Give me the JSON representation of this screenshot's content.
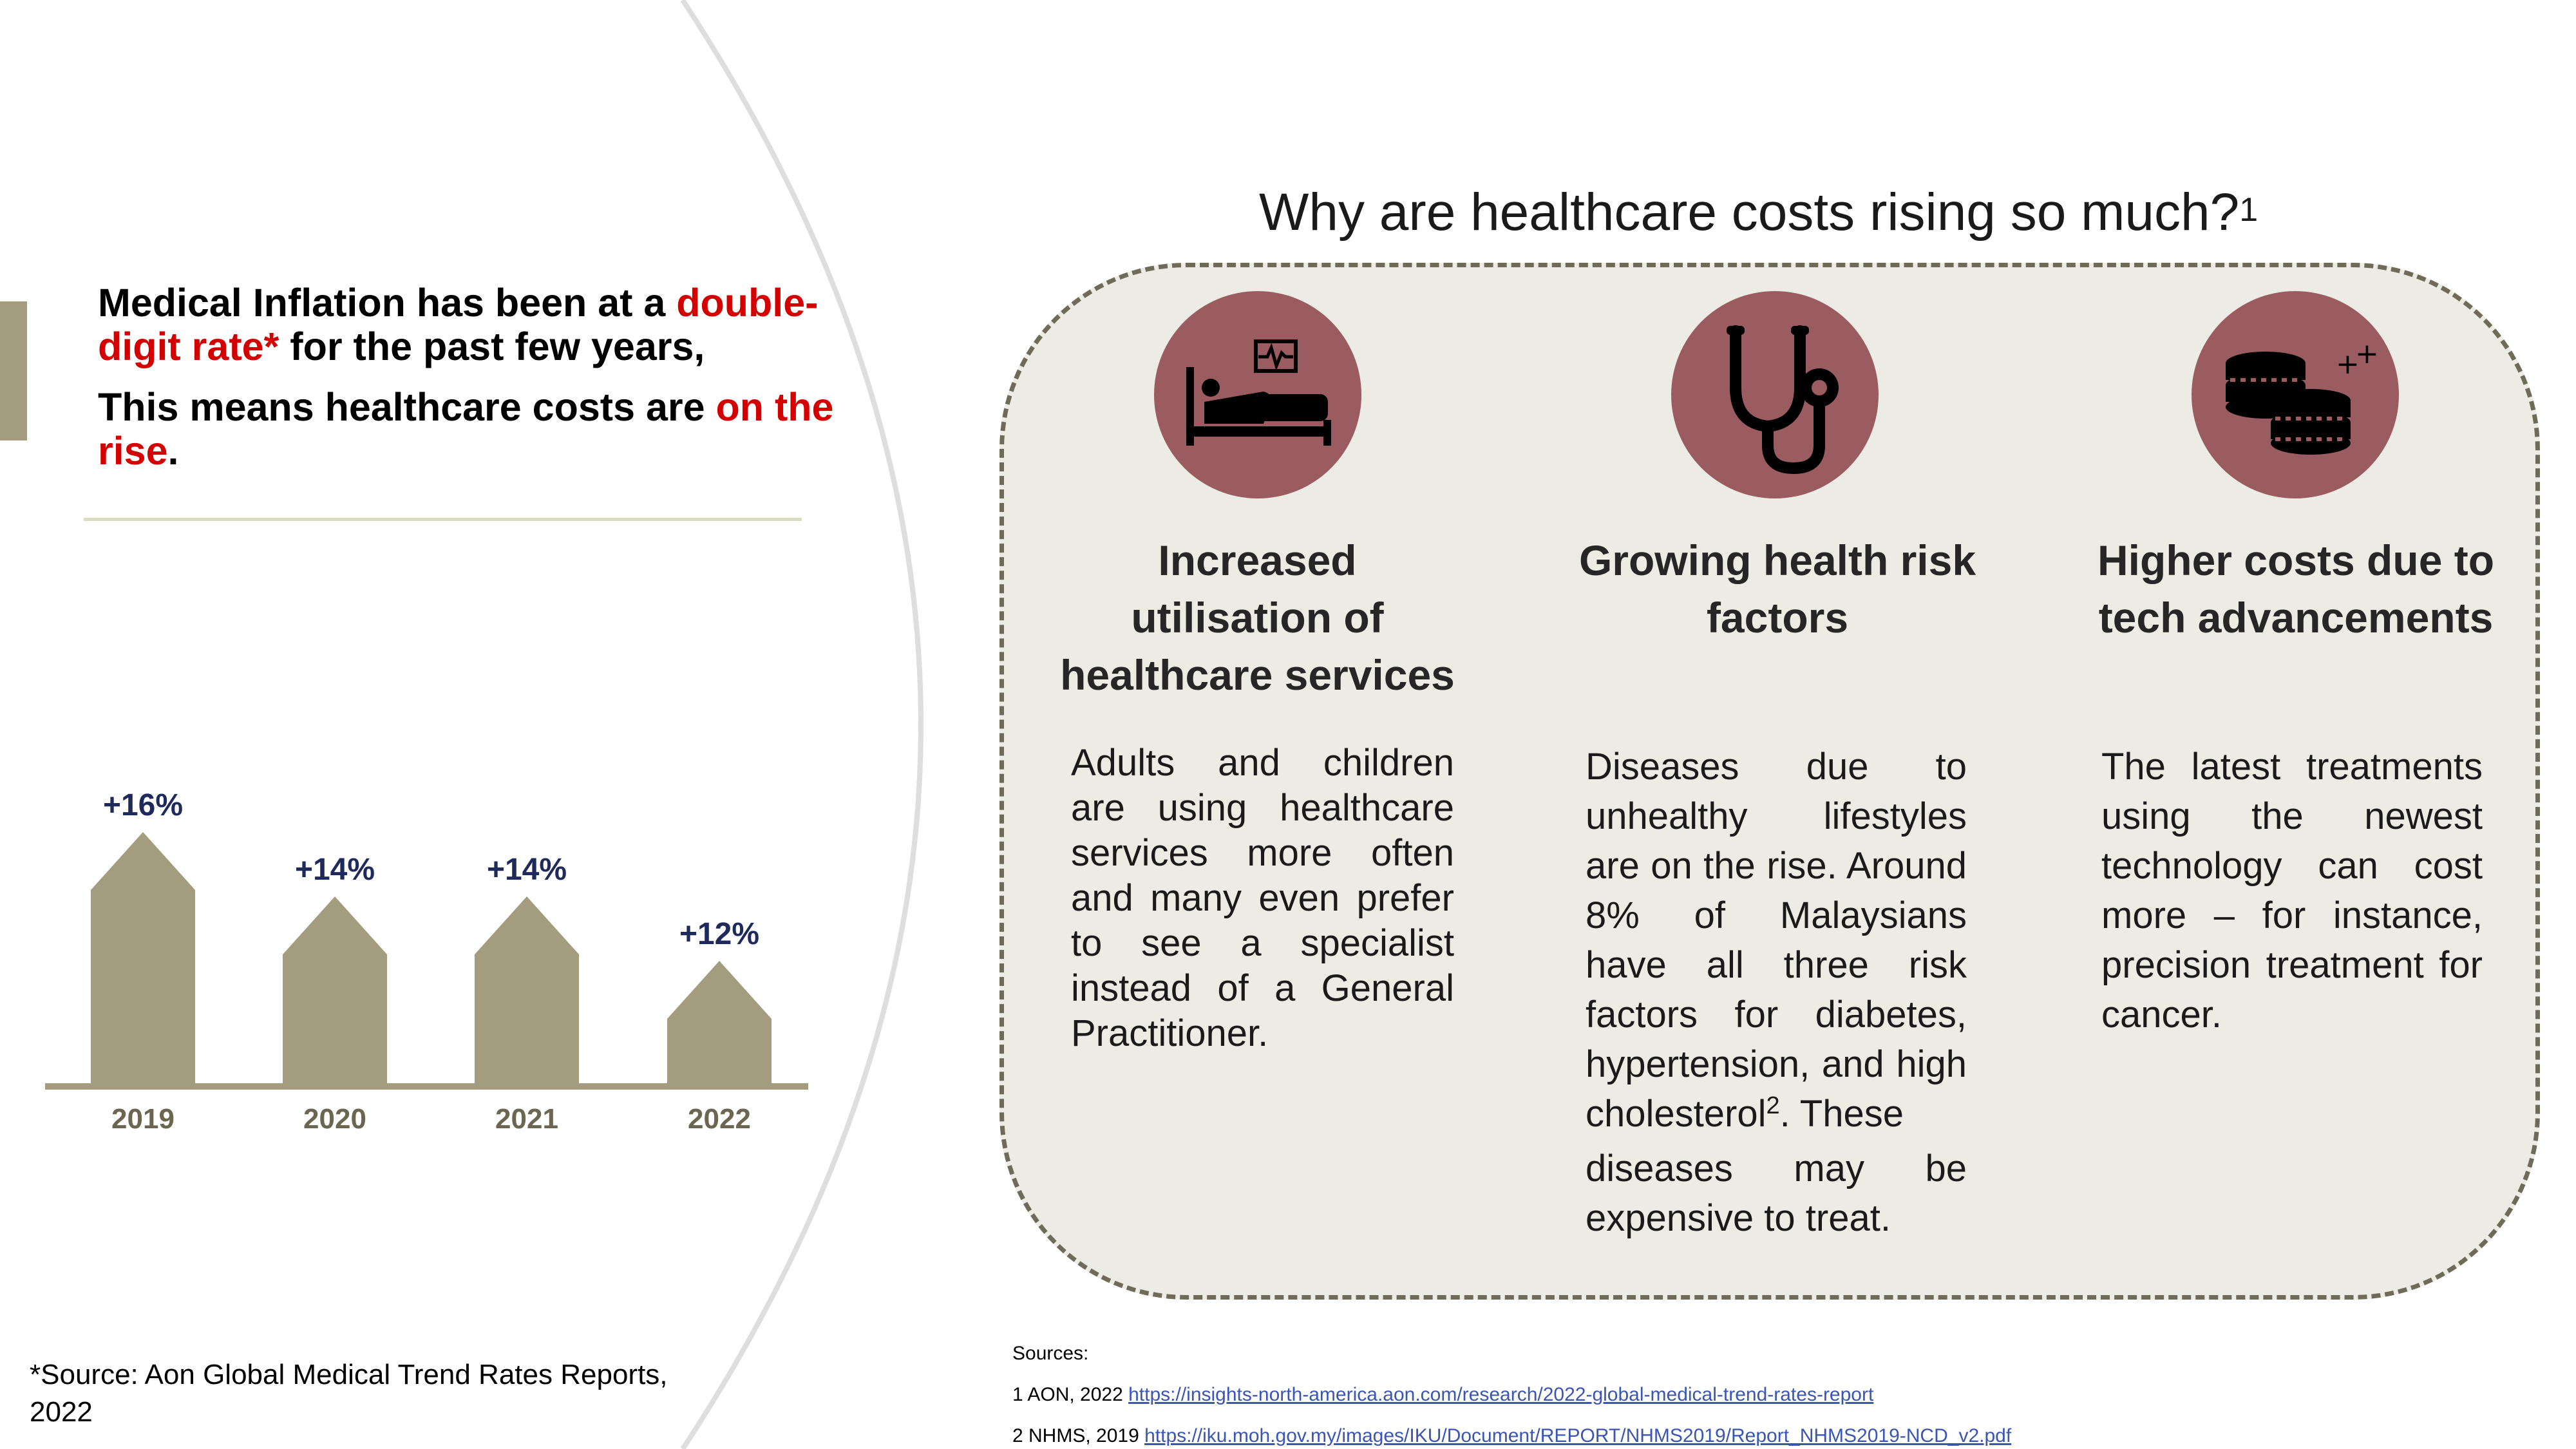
{
  "left": {
    "headline1": {
      "p1": "Medical Inflation has been at a ",
      "highlight": "double-digit rate*",
      "p2": " for the past few years,"
    },
    "headline2": {
      "p1": "This means healthcare costs are ",
      "highlight": "on the rise",
      "p2": "."
    },
    "source_note": "*Source: Aon Global Medical Trend Rates Reports, 2022"
  },
  "chart_data": {
    "type": "bar",
    "categories": [
      "2019",
      "2020",
      "2021",
      "2022"
    ],
    "values": [
      16,
      14,
      14,
      12
    ],
    "data_labels": [
      "+16%",
      "+14%",
      "+14%",
      "+12%"
    ],
    "unit": "%",
    "title": "",
    "xlabel": "",
    "ylabel": "",
    "grid": false,
    "legend": "none",
    "bar_color": "#a39c7f",
    "label_color": "#1f2a5c",
    "category_color": "#6b664f"
  },
  "right": {
    "question": "Why are healthcare costs rising so much?",
    "question_ref": "1",
    "factors": [
      {
        "icon": "hospital-bed-icon",
        "title_lines": [
          "Increased",
          "utilisation of",
          "healthcare services"
        ],
        "body_lines": [
          "Adults and children",
          "are using healthcare",
          "services more often",
          "and many even prefer",
          "to see a specialist",
          "instead of a General",
          "Practitioner."
        ]
      },
      {
        "icon": "stethoscope-icon",
        "title_lines": [
          "Growing health risk",
          "factors"
        ],
        "body_lines": [
          "Diseases due to",
          "unhealthy lifestyles",
          "are on the rise. Around",
          "8% of Malaysians",
          "have all three risk",
          "factors for diabetes,",
          "hypertension, and high"
        ],
        "body_line8": "cholesterol",
        "body_line8_ref": "2",
        "body_line8_rest": ". These",
        "body_tail_lines": [
          "diseases may be",
          "expensive to treat."
        ]
      },
      {
        "icon": "coin-stack-icon",
        "title_lines": [
          "Higher costs due to",
          "tech advancements"
        ],
        "body_lines": [
          "The latest treatments",
          "using the newest",
          "technology can cost",
          "more – for instance,",
          "precision treatment for",
          "cancer."
        ]
      }
    ],
    "sources": {
      "label": "Sources:",
      "items": [
        {
          "prefix": "1 AON, 2022 ",
          "link": "https://insights-north-america.aon.com/research/2022-global-medical-trend-rates-report"
        },
        {
          "prefix": "2 NHMS, 2019 ",
          "link": "https://iku.moh.gov.my/images/IKU/Document/REPORT/NHMS2019/Report_NHMS2019-NCD_v2.pdf"
        }
      ]
    }
  },
  "colors": {
    "accent_red": "#d40000",
    "bar": "#a39c7f",
    "icon_circle": "#9a5c60",
    "panel_bg": "#ecebe4",
    "panel_border": "#6f6b58"
  }
}
